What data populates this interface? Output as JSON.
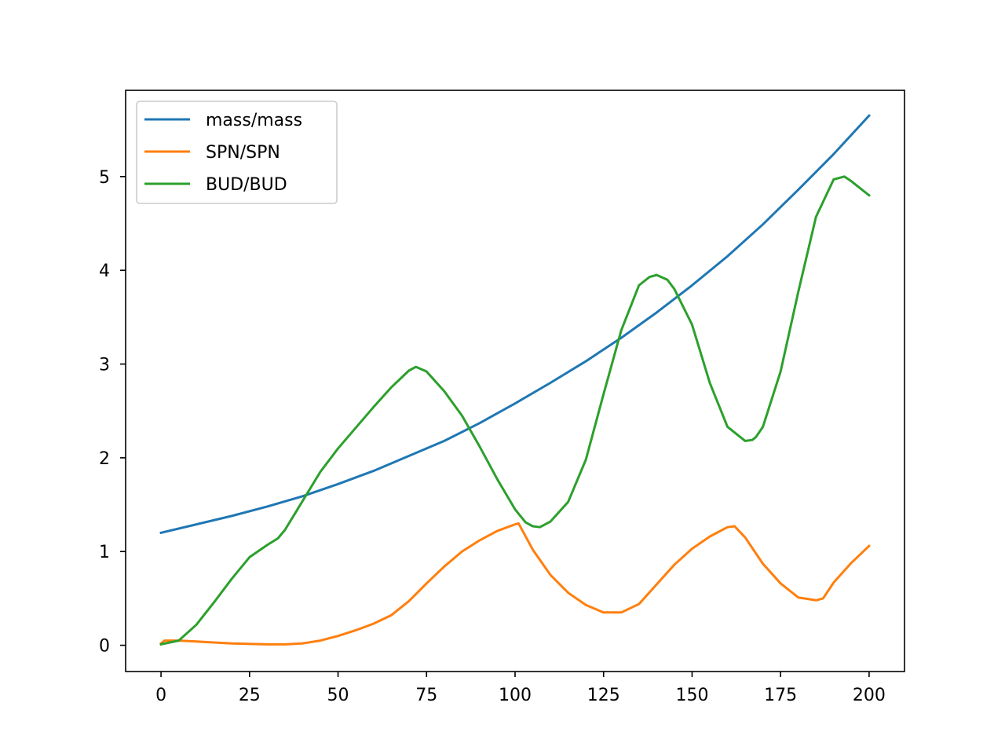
{
  "chart_data": {
    "type": "line",
    "title": "",
    "xlabel": "",
    "ylabel": "",
    "xlim": [
      -10,
      210
    ],
    "ylim": [
      -0.28,
      5.92
    ],
    "xticks": [
      0,
      25,
      50,
      75,
      100,
      125,
      150,
      175,
      200
    ],
    "yticks": [
      0,
      1,
      2,
      3,
      4,
      5
    ],
    "grid": false,
    "legend_position": "upper-left",
    "series": [
      {
        "name": "mass/mass",
        "color": "#1f77b4",
        "x": [
          0,
          10,
          20,
          30,
          40,
          50,
          60,
          70,
          80,
          90,
          100,
          110,
          120,
          130,
          140,
          150,
          160,
          170,
          180,
          190,
          200
        ],
        "y": [
          1.2,
          1.29,
          1.38,
          1.48,
          1.59,
          1.72,
          1.86,
          2.02,
          2.18,
          2.37,
          2.58,
          2.8,
          3.03,
          3.28,
          3.55,
          3.84,
          4.15,
          4.49,
          4.86,
          5.24,
          5.65
        ]
      },
      {
        "name": "SPN/SPN",
        "color": "#ff7f0e",
        "x": [
          0,
          1,
          5,
          10,
          20,
          30,
          35,
          40,
          45,
          50,
          55,
          60,
          65,
          67,
          70,
          75,
          80,
          85,
          90,
          95,
          100,
          101,
          105,
          110,
          115,
          120,
          125,
          130,
          135,
          140,
          145,
          150,
          155,
          160,
          162,
          165,
          170,
          175,
          180,
          185,
          187,
          190,
          195,
          200
        ],
        "y": [
          0.02,
          0.05,
          0.05,
          0.04,
          0.02,
          0.01,
          0.01,
          0.02,
          0.05,
          0.1,
          0.16,
          0.23,
          0.32,
          0.38,
          0.47,
          0.66,
          0.84,
          1.0,
          1.12,
          1.22,
          1.29,
          1.3,
          1.02,
          0.75,
          0.56,
          0.43,
          0.35,
          0.35,
          0.44,
          0.65,
          0.86,
          1.03,
          1.16,
          1.26,
          1.27,
          1.15,
          0.87,
          0.66,
          0.51,
          0.48,
          0.5,
          0.67,
          0.88,
          1.06
        ]
      },
      {
        "name": "BUD/BUD",
        "color": "#2ca02c",
        "x": [
          0,
          5,
          10,
          15,
          20,
          25,
          30,
          33,
          35,
          40,
          45,
          50,
          55,
          60,
          65,
          70,
          72,
          75,
          80,
          85,
          90,
          95,
          100,
          103,
          105,
          107,
          110,
          115,
          120,
          125,
          130,
          135,
          138,
          140,
          143,
          145,
          150,
          155,
          160,
          165,
          167,
          168,
          170,
          175,
          180,
          185,
          190,
          193,
          195,
          198,
          200
        ],
        "y": [
          0.01,
          0.05,
          0.22,
          0.46,
          0.71,
          0.94,
          1.07,
          1.14,
          1.23,
          1.54,
          1.85,
          2.1,
          2.32,
          2.54,
          2.75,
          2.93,
          2.97,
          2.92,
          2.71,
          2.45,
          2.12,
          1.77,
          1.45,
          1.31,
          1.27,
          1.26,
          1.32,
          1.53,
          1.98,
          2.68,
          3.36,
          3.84,
          3.93,
          3.95,
          3.9,
          3.8,
          3.42,
          2.8,
          2.33,
          2.18,
          2.19,
          2.22,
          2.33,
          2.92,
          3.77,
          4.57,
          4.97,
          5.0,
          4.95,
          4.86,
          4.8
        ]
      }
    ]
  }
}
